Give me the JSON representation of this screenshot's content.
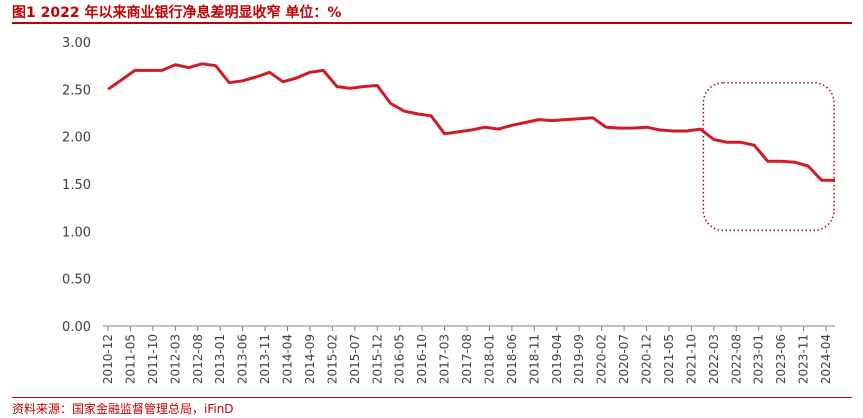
{
  "header": {
    "title": "图1  2022 年以来商业银行净息差明显收窄  单位：%"
  },
  "footer": {
    "source": "资料来源：国家金融监督管理总局，iFinD"
  },
  "colors": {
    "accent": "#c00000",
    "line": "#d01a28",
    "axis": "#7f7f7f",
    "text": "#404040"
  },
  "chart_data": {
    "type": "line",
    "title": "",
    "xlabel": "",
    "ylabel": "",
    "ylim": [
      0,
      3
    ],
    "yticks": [
      "0.00",
      "0.50",
      "1.00",
      "1.50",
      "2.00",
      "2.50",
      "3.00"
    ],
    "x_tick_labels": [
      "2010-12",
      "2011-05",
      "2011-10",
      "2012-03",
      "2012-08",
      "2013-01",
      "2013-06",
      "2013-11",
      "2014-04",
      "2014-09",
      "2015-02",
      "2015-07",
      "2015-12",
      "2016-05",
      "2016-10",
      "2017-03",
      "2017-08",
      "2018-01",
      "2018-06",
      "2018-11",
      "2019-04",
      "2019-09",
      "2020-02",
      "2020-07",
      "2020-12",
      "2021-05",
      "2021-10",
      "2022-03",
      "2022-08",
      "2023-01",
      "2023-06",
      "2023-11",
      "2024-04"
    ],
    "grid": false,
    "highlight": "dotted rounded box around 2022-2024",
    "series": [
      {
        "points": [
          [
            "2010-12",
            2.5
          ],
          [
            "2011-03",
            2.6
          ],
          [
            "2011-06",
            2.7
          ],
          [
            "2011-09",
            2.7
          ],
          [
            "2011-12",
            2.7
          ],
          [
            "2012-03",
            2.76
          ],
          [
            "2012-06",
            2.73
          ],
          [
            "2012-09",
            2.77
          ],
          [
            "2012-12",
            2.75
          ],
          [
            "2013-03",
            2.57
          ],
          [
            "2013-06",
            2.59
          ],
          [
            "2013-09",
            2.63
          ],
          [
            "2013-12",
            2.68
          ],
          [
            "2014-03",
            2.58
          ],
          [
            "2014-06",
            2.62
          ],
          [
            "2014-09",
            2.68
          ],
          [
            "2014-12",
            2.7
          ],
          [
            "2015-03",
            2.53
          ],
          [
            "2015-06",
            2.51
          ],
          [
            "2015-09",
            2.53
          ],
          [
            "2015-12",
            2.54
          ],
          [
            "2016-03",
            2.35
          ],
          [
            "2016-06",
            2.27
          ],
          [
            "2016-09",
            2.24
          ],
          [
            "2016-12",
            2.22
          ],
          [
            "2017-03",
            2.03
          ],
          [
            "2017-06",
            2.05
          ],
          [
            "2017-09",
            2.07
          ],
          [
            "2017-12",
            2.1
          ],
          [
            "2018-03",
            2.08
          ],
          [
            "2018-06",
            2.12
          ],
          [
            "2018-09",
            2.15
          ],
          [
            "2018-12",
            2.18
          ],
          [
            "2019-03",
            2.17
          ],
          [
            "2019-06",
            2.18
          ],
          [
            "2019-09",
            2.19
          ],
          [
            "2019-12",
            2.2
          ],
          [
            "2020-03",
            2.1
          ],
          [
            "2020-06",
            2.09
          ],
          [
            "2020-09",
            2.09
          ],
          [
            "2020-12",
            2.1
          ],
          [
            "2021-03",
            2.07
          ],
          [
            "2021-06",
            2.06
          ],
          [
            "2021-09",
            2.06
          ],
          [
            "2021-12",
            2.08
          ],
          [
            "2022-03",
            1.97
          ],
          [
            "2022-06",
            1.94
          ],
          [
            "2022-09",
            1.94
          ],
          [
            "2022-12",
            1.91
          ],
          [
            "2023-03",
            1.74
          ],
          [
            "2023-06",
            1.74
          ],
          [
            "2023-09",
            1.73
          ],
          [
            "2023-12",
            1.69
          ],
          [
            "2024-03",
            1.54
          ],
          [
            "2024-06",
            1.54
          ]
        ]
      }
    ]
  }
}
